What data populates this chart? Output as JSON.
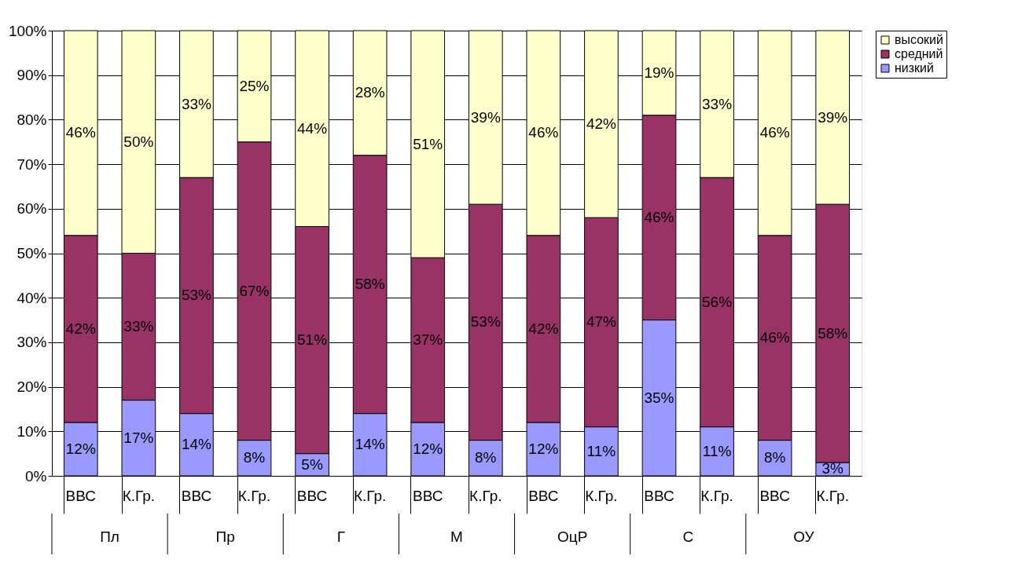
{
  "chart_data": {
    "type": "bar",
    "stacked": true,
    "categories": [
      "ВВС",
      "К.Гр.",
      "ВВС",
      "К.Гр.",
      "ВВС",
      "К.Гр.",
      "ВВС",
      "К.Гр.",
      "ВВС",
      "К.Гр.",
      "ВВС",
      "К.Гр.",
      "ВВС",
      "К.Гр."
    ],
    "annotations": [
      "Пл",
      "Пр",
      "Г",
      "М",
      "ОцР",
      "С",
      "ОУ"
    ],
    "series": [
      {
        "name": "низкий",
        "color": "#9999ff",
        "values": [
          12,
          17,
          14,
          8,
          5,
          14,
          12,
          8,
          12,
          11,
          35,
          11,
          8,
          3
        ],
        "value_labels": [
          "12%",
          "17%",
          "14%",
          "8%",
          "5%",
          "14%",
          "12%",
          "8%",
          "12%",
          "11%",
          "35%",
          "11%",
          "8%",
          "3%"
        ]
      },
      {
        "name": "средний",
        "color": "#993366",
        "values": [
          42,
          33,
          53,
          67,
          51,
          58,
          37,
          53,
          42,
          47,
          46,
          56,
          46,
          58
        ],
        "value_labels": [
          "42%",
          "33%",
          "53%",
          "67%",
          "51%",
          "58%",
          "37%",
          "53%",
          "42%",
          "47%",
          "46%",
          "56%",
          "46%",
          "58%"
        ]
      },
      {
        "name": "высокий",
        "color": "#ffffcc",
        "values": [
          46,
          50,
          33,
          25,
          44,
          28,
          51,
          39,
          46,
          42,
          19,
          33,
          46,
          39
        ],
        "value_labels": [
          "46%",
          "50%",
          "33%",
          "25%",
          "44%",
          "28%",
          "51%",
          "39%",
          "46%",
          "42%",
          "19%",
          "33%",
          "46%",
          "39%"
        ]
      }
    ],
    "ylim": [
      0,
      100
    ],
    "yticks": [
      {
        "value": 0,
        "label": "0%"
      },
      {
        "value": 10,
        "label": "10%"
      },
      {
        "value": 20,
        "label": "20%"
      },
      {
        "value": 30,
        "label": "30%"
      },
      {
        "value": 40,
        "label": "40%"
      },
      {
        "value": 50,
        "label": "50%"
      },
      {
        "value": 60,
        "label": "60%"
      },
      {
        "value": 70,
        "label": "70%"
      },
      {
        "value": 80,
        "label": "80%"
      },
      {
        "value": 90,
        "label": "90%"
      },
      {
        "value": 100,
        "label": "100%"
      }
    ],
    "grid": "y",
    "legend": "right"
  }
}
